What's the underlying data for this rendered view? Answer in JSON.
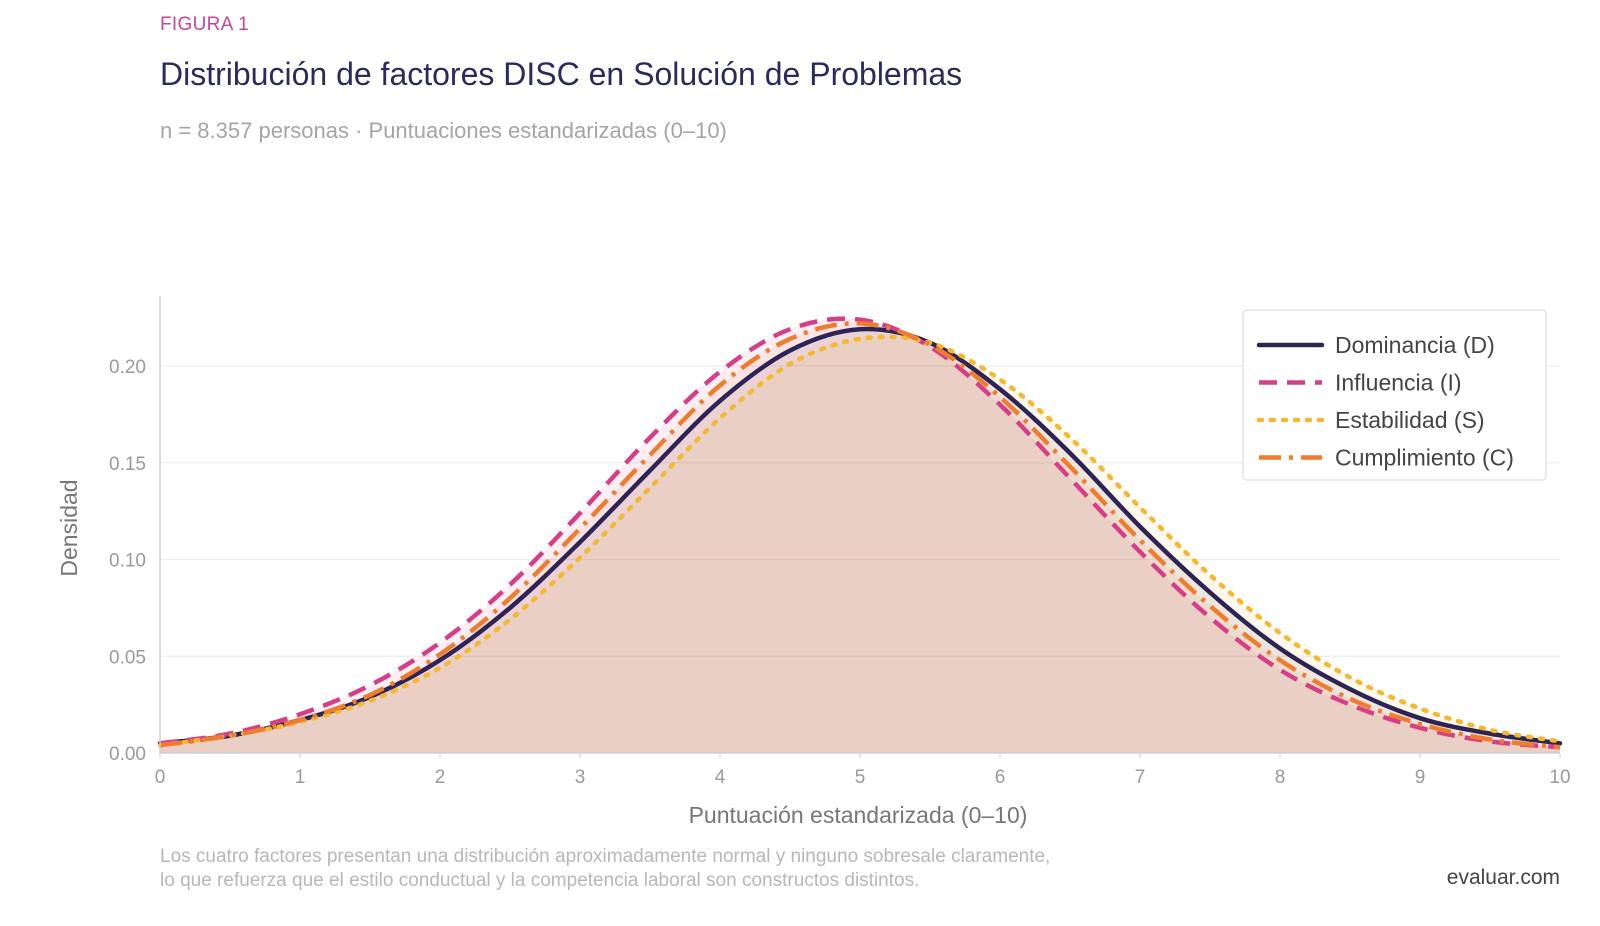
{
  "header": {
    "figure_label": "FIGURA 1",
    "title": "Distribución de factores DISC en Solución de Problemas",
    "subtitle": "n = 8.357 personas · Puntuaciones estandarizadas (0–10)"
  },
  "footer": {
    "caption_line1": "Los cuatro factores presentan una distribución aproximadamente normal y ninguno sobresale claramente,",
    "caption_line2": "lo que refuerza que el estilo conductual y la competencia laboral son constructos distintos.",
    "brand": "evaluar.com"
  },
  "chart_data": {
    "type": "line",
    "xlabel": "Puntuación estandarizada (0–10)",
    "ylabel": "Densidad",
    "xlim": [
      0,
      10
    ],
    "ylim": [
      0,
      0.235
    ],
    "xticks": [
      0,
      1,
      2,
      3,
      4,
      5,
      6,
      7,
      8,
      9,
      10
    ],
    "yticks": [
      "0.00",
      "0.05",
      "0.10",
      "0.15",
      "0.20"
    ],
    "grid": "horizontal",
    "legend_position": "top-right",
    "fill_color": "#efd3cb",
    "x": [
      0,
      0.5,
      1,
      1.5,
      2,
      2.5,
      3,
      3.5,
      4,
      4.5,
      5,
      5.5,
      6,
      6.5,
      7,
      7.5,
      8,
      8.5,
      9,
      9.5,
      10
    ],
    "series": [
      {
        "name": "Dominancia (D)",
        "color": "#2e2355",
        "dash": "solid",
        "values": [
          0.005,
          0.009,
          0.017,
          0.029,
          0.048,
          0.075,
          0.109,
          0.146,
          0.182,
          0.208,
          0.219,
          0.212,
          0.188,
          0.155,
          0.117,
          0.083,
          0.054,
          0.033,
          0.018,
          0.01,
          0.005
        ]
      },
      {
        "name": "Influencia (I)",
        "color": "#d63f87",
        "dash": "dashed",
        "values": [
          0.005,
          0.01,
          0.02,
          0.035,
          0.057,
          0.087,
          0.124,
          0.163,
          0.197,
          0.219,
          0.224,
          0.21,
          0.18,
          0.142,
          0.104,
          0.07,
          0.043,
          0.025,
          0.013,
          0.006,
          0.003
        ]
      },
      {
        "name": "Estabilidad (S)",
        "color": "#f5b82e",
        "dash": "dotted",
        "values": [
          0.004,
          0.009,
          0.016,
          0.027,
          0.044,
          0.069,
          0.101,
          0.137,
          0.173,
          0.201,
          0.214,
          0.212,
          0.193,
          0.163,
          0.127,
          0.092,
          0.062,
          0.039,
          0.023,
          0.012,
          0.006
        ]
      },
      {
        "name": "Cumplimiento (C)",
        "color": "#ef7d2d",
        "dash": "dashdot",
        "values": [
          0.004,
          0.009,
          0.017,
          0.03,
          0.051,
          0.08,
          0.116,
          0.154,
          0.19,
          0.214,
          0.222,
          0.211,
          0.184,
          0.148,
          0.11,
          0.076,
          0.048,
          0.028,
          0.015,
          0.007,
          0.003
        ]
      }
    ]
  }
}
